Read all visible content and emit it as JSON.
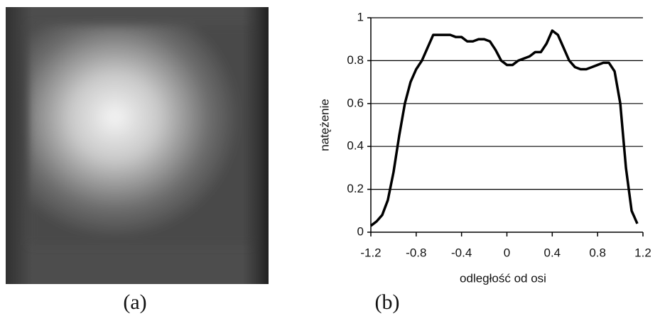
{
  "panel_labels": [
    "(a)",
    "(b)"
  ],
  "chart_data": {
    "type": "line",
    "x_label": "odległość od osi",
    "y_label": "natężenie",
    "x": [
      -1.2,
      -1.15,
      -1.1,
      -1.05,
      -1.0,
      -0.95,
      -0.9,
      -0.85,
      -0.8,
      -0.75,
      -0.7,
      -0.65,
      -0.6,
      -0.5,
      -0.45,
      -0.4,
      -0.35,
      -0.3,
      -0.25,
      -0.2,
      -0.15,
      -0.1,
      -0.05,
      0,
      0.05,
      0.1,
      0.15,
      0.2,
      0.25,
      0.3,
      0.35,
      0.4,
      0.45,
      0.5,
      0.55,
      0.6,
      0.65,
      0.7,
      0.75,
      0.8,
      0.85,
      0.9,
      0.95,
      1.0,
      1.05,
      1.1,
      1.15
    ],
    "series": [
      {
        "color": "#000000",
        "values": [
          0.03,
          0.05,
          0.08,
          0.15,
          0.28,
          0.45,
          0.6,
          0.7,
          0.76,
          0.8,
          0.86,
          0.92,
          0.92,
          0.92,
          0.91,
          0.91,
          0.89,
          0.89,
          0.9,
          0.9,
          0.89,
          0.85,
          0.8,
          0.78,
          0.78,
          0.8,
          0.81,
          0.82,
          0.84,
          0.84,
          0.88,
          0.94,
          0.92,
          0.86,
          0.8,
          0.77,
          0.76,
          0.76,
          0.77,
          0.78,
          0.79,
          0.79,
          0.75,
          0.6,
          0.3,
          0.1,
          0.04
        ]
      }
    ],
    "xlim": [
      -1.2,
      1.2
    ],
    "xticks": [
      -1.2,
      -0.8,
      -0.4,
      0,
      0.4,
      0.8,
      1.2
    ],
    "ylim": [
      0,
      1
    ],
    "yticks": [
      0,
      0.2,
      0.4,
      0.6,
      0.8,
      1
    ],
    "grid": true
  }
}
